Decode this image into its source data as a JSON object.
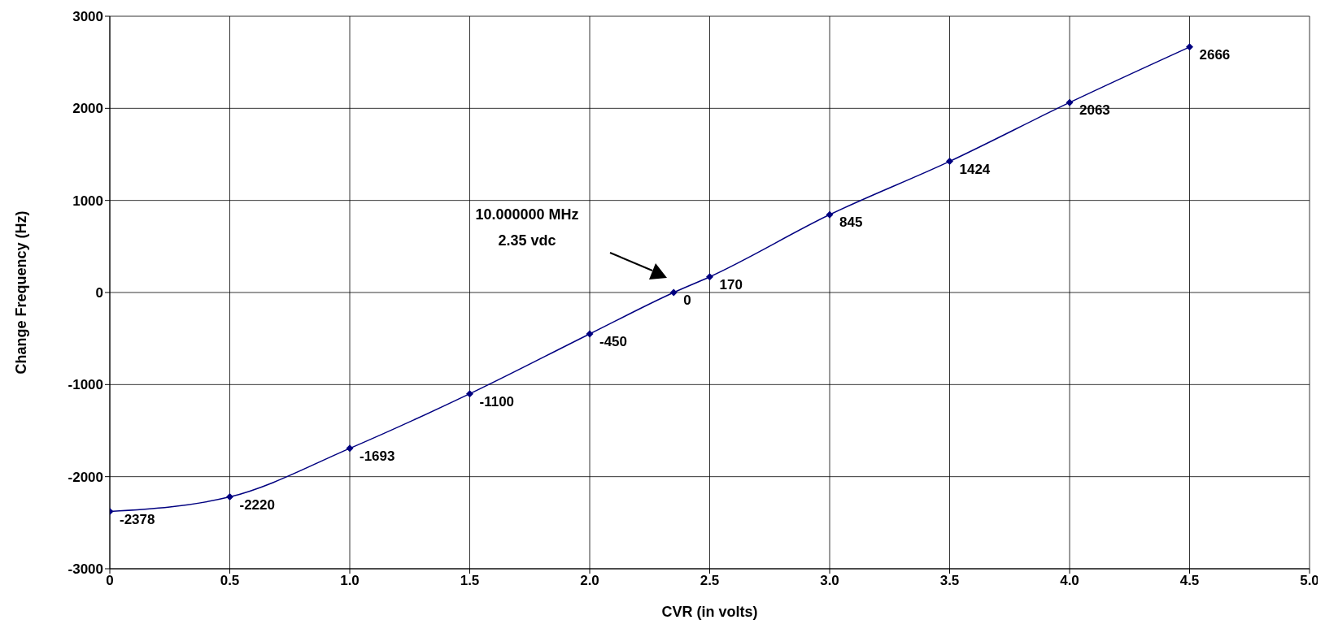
{
  "chart_data": {
    "type": "line",
    "xlabel": "CVR (in volts)",
    "ylabel": "Change Frequency   (Hz)",
    "x": [
      0,
      0.5,
      1,
      1.5,
      2,
      2.35,
      2.5,
      3,
      3.5,
      4,
      4.5
    ],
    "series": [
      {
        "color": "#000080",
        "values": [
          -2378,
          -2220,
          -1693,
          -1100,
          -450,
          0,
          170,
          845,
          1424,
          2063,
          2666
        ]
      }
    ],
    "xlim": [
      0,
      5
    ],
    "xticks": [
      0,
      0.5,
      {
        "value": 1,
        "label": "1.0"
      },
      1.5,
      {
        "value": 2,
        "label": "2.0"
      },
      2.5,
      {
        "value": 3,
        "label": "3.0"
      },
      3.5,
      {
        "value": 4,
        "label": "4.0"
      },
      4.5,
      {
        "value": 5,
        "label": "5.0"
      }
    ],
    "ylim": [
      -3000,
      3000
    ],
    "yticks": [
      -3000,
      -2000,
      -1000,
      0,
      1000,
      2000,
      3000
    ],
    "grid": true,
    "marker": "diamond",
    "line_style": "solid",
    "data_labels": true,
    "legend": false,
    "annotations": [
      "10.000000 MHz\n2.35 vdc"
    ]
  }
}
